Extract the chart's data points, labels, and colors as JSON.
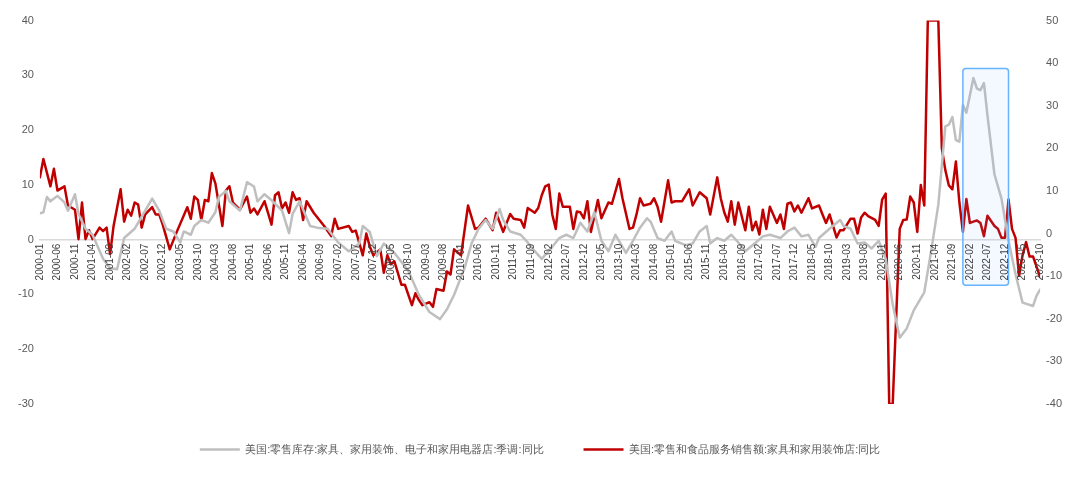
{
  "chart_data": {
    "type": "line",
    "legend": "bottom",
    "grid": false,
    "xlim": [
      "2000-01",
      "2023-10"
    ],
    "xticks": [
      "2000-01",
      "2000-06",
      "2000-11",
      "2001-04",
      "2001-09",
      "2002-02",
      "2002-07",
      "2002-12",
      "2003-05",
      "2003-10",
      "2004-03",
      "2004-08",
      "2005-01",
      "2005-06",
      "2005-11",
      "2006-04",
      "2006-09",
      "2007-02",
      "2007-07",
      "2007-12",
      "2008-05",
      "2008-10",
      "2009-03",
      "2009-08",
      "2010-01",
      "2010-06",
      "2010-11",
      "2011-04",
      "2011-09",
      "2012-02",
      "2012-07",
      "2012-12",
      "2013-05",
      "2013-10",
      "2014-03",
      "2014-08",
      "2015-01",
      "2015-06",
      "2015-11",
      "2016-04",
      "2016-09",
      "2017-02",
      "2017-07",
      "2017-12",
      "2018-05",
      "2018-10",
      "2019-03",
      "2019-08",
      "2020-01",
      "2020-06",
      "2020-11",
      "2021-04",
      "2021-09",
      "2022-02",
      "2022-07",
      "2022-12",
      "2023-05",
      "2023-10"
    ],
    "ylim": [
      -30,
      40
    ],
    "yticks": [
      -30,
      -20,
      -10,
      0,
      10,
      20,
      30,
      40
    ],
    "y2lim": [
      -40,
      50
    ],
    "y2ticks": [
      -40,
      -30,
      -20,
      -10,
      0,
      10,
      20,
      30,
      40,
      50
    ],
    "bands": [
      {
        "axis": "x",
        "from": "2021-12",
        "to": "2023-01",
        "color": "#66b3ff"
      }
    ],
    "series": [
      {
        "name": "美国:零售库存:家具、家用装饰、电子和家用电器店:季调:同比",
        "color": "#bfbfbf",
        "x": [
          "2000-01",
          "2000-02",
          "2000-03",
          "2000-04",
          "2000-06",
          "2000-08",
          "2000-09",
          "2000-11",
          "2000-12",
          "2001-02",
          "2001-04",
          "2001-07",
          "2001-09",
          "2001-11",
          "2002-01",
          "2002-04",
          "2002-06",
          "2002-09",
          "2002-11",
          "2003-01",
          "2003-03",
          "2003-05",
          "2003-06",
          "2003-08",
          "2003-09",
          "2003-11",
          "2004-01",
          "2004-03",
          "2004-04",
          "2004-06",
          "2004-07",
          "2004-10",
          "2004-12",
          "2005-02",
          "2005-03",
          "2005-05",
          "2005-07",
          "2005-10",
          "2005-12",
          "2006-01",
          "2006-03",
          "2006-06",
          "2006-08",
          "2006-11",
          "2007-02",
          "2007-05",
          "2007-08",
          "2007-09",
          "2007-11",
          "2008-01",
          "2008-03",
          "2008-06",
          "2008-10",
          "2009-01",
          "2009-04",
          "2009-07",
          "2009-09",
          "2009-11",
          "2010-02",
          "2010-04",
          "2010-06",
          "2010-08",
          "2010-10",
          "2010-12",
          "2011-01",
          "2011-03",
          "2011-06",
          "2011-08",
          "2011-10",
          "2011-12",
          "2012-03",
          "2012-05",
          "2012-07",
          "2012-09",
          "2012-11",
          "2013-01",
          "2013-03",
          "2013-05",
          "2013-07",
          "2013-09",
          "2013-12",
          "2014-02",
          "2014-04",
          "2014-06",
          "2014-07",
          "2014-09",
          "2014-11",
          "2015-01",
          "2015-02",
          "2015-05",
          "2015-07",
          "2015-09",
          "2015-11",
          "2015-12",
          "2016-02",
          "2016-04",
          "2016-06",
          "2016-08",
          "2016-10",
          "2017-01",
          "2017-03",
          "2017-05",
          "2017-08",
          "2017-10",
          "2017-12",
          "2018-02",
          "2018-04",
          "2018-06",
          "2018-07",
          "2018-10",
          "2019-01",
          "2019-02",
          "2019-04",
          "2019-06",
          "2019-08",
          "2019-10",
          "2019-12",
          "2020-02",
          "2020-04",
          "2020-06",
          "2020-08",
          "2020-10",
          "2020-11",
          "2021-01",
          "2021-03",
          "2021-05",
          "2021-07",
          "2021-08",
          "2021-09",
          "2021-10",
          "2021-11",
          "2021-12",
          "2022-01",
          "2022-03",
          "2022-04",
          "2022-05",
          "2022-06",
          "2022-07",
          "2022-09",
          "2022-11",
          "2023-01",
          "2023-03",
          "2023-05",
          "2023-08",
          "2023-09",
          "2023-10"
        ],
        "values": [
          4.8,
          5.0,
          7.8,
          7.0,
          8.0,
          6.8,
          5.3,
          8.3,
          4.7,
          2.0,
          0.9,
          -3.5,
          -5.2,
          -5.4,
          0.3,
          2.0,
          4.2,
          7.5,
          5.3,
          2.0,
          1.5,
          -0.5,
          1.5,
          0.9,
          2.5,
          3.6,
          3.1,
          5.0,
          7.8,
          8.9,
          7.0,
          5.3,
          10.5,
          9.7,
          7.0,
          8.3,
          7.2,
          5.3,
          1.2,
          4.7,
          7.0,
          2.5,
          2.2,
          2.0,
          -0.5,
          -2.1,
          -0.7,
          2.5,
          1.4,
          -3.0,
          -0.7,
          -2.4,
          -5.7,
          -10.1,
          -13.2,
          -14.5,
          -12.7,
          -10.1,
          -5.2,
          -0.7,
          2.0,
          3.6,
          2.0,
          5.6,
          3.6,
          1.5,
          0.9,
          -0.5,
          -2.1,
          -3.5,
          -1.3,
          0.3,
          0.9,
          0.3,
          3.1,
          1.5,
          5.0,
          -0.2,
          -2.1,
          0.9,
          -2.4,
          -0.2,
          2.2,
          3.9,
          3.3,
          0.3,
          -0.2,
          1.5,
          -0.2,
          -1.0,
          -0.7,
          1.5,
          2.5,
          -0.7,
          0.3,
          -0.2,
          0.9,
          -0.5,
          -2.1,
          -0.5,
          0.6,
          0.9,
          0.3,
          1.5,
          2.2,
          0.6,
          0.9,
          -1.3,
          0.3,
          2.0,
          3.6,
          2.5,
          2.0,
          -0.7,
          -0.5,
          -1.6,
          -0.2,
          -3.5,
          -11.8,
          -17.9,
          -16.2,
          -12.9,
          -11.8,
          -9.6,
          -1.9,
          6.4,
          20.7,
          21.0,
          22.4,
          18.2,
          17.9,
          24.6,
          23.2,
          29.5,
          27.6,
          27.3,
          28.6,
          22.7,
          11.9,
          7.5,
          -0.2,
          -6.3,
          -11.5,
          -12.1,
          -10.2,
          -9.1
        ]
      },
      {
        "name": "美国:零售和食品服务销售额:家具和家用装饰店:同比",
        "color": "#c00000",
        "axis": "y2",
        "x": [
          "2000-01",
          "2000-02",
          "2000-04",
          "2000-05",
          "2000-06",
          "2000-08",
          "2000-09",
          "2000-11",
          "2000-12",
          "2001-01",
          "2001-02",
          "2001-03",
          "2001-04",
          "2001-06",
          "2001-07",
          "2001-08",
          "2001-09",
          "2001-10",
          "2001-12",
          "2002-01",
          "2002-02",
          "2002-03",
          "2002-04",
          "2002-05",
          "2002-06",
          "2002-07",
          "2002-09",
          "2002-10",
          "2002-11",
          "2002-12",
          "2003-02",
          "2003-04",
          "2003-07",
          "2003-08",
          "2003-09",
          "2003-10",
          "2003-11",
          "2003-12",
          "2004-01",
          "2004-02",
          "2004-03",
          "2004-05",
          "2004-06",
          "2004-07",
          "2004-08",
          "2004-10",
          "2004-12",
          "2005-01",
          "2005-02",
          "2005-03",
          "2005-05",
          "2005-07",
          "2005-08",
          "2005-09",
          "2005-10",
          "2005-11",
          "2005-12",
          "2006-01",
          "2006-02",
          "2006-03",
          "2006-04",
          "2006-05",
          "2006-07",
          "2006-10",
          "2006-12",
          "2007-01",
          "2007-02",
          "2007-05",
          "2007-06",
          "2007-07",
          "2007-09",
          "2007-10",
          "2007-11",
          "2007-12",
          "2008-02",
          "2008-03",
          "2008-04",
          "2008-05",
          "2008-06",
          "2008-07",
          "2008-08",
          "2008-09",
          "2008-11",
          "2008-12",
          "2009-01",
          "2009-02",
          "2009-04",
          "2009-05",
          "2009-06",
          "2009-08",
          "2009-09",
          "2009-10",
          "2009-11",
          "2010-01",
          "2010-03",
          "2010-05",
          "2010-06",
          "2010-08",
          "2010-10",
          "2010-11",
          "2011-01",
          "2011-03",
          "2011-04",
          "2011-06",
          "2011-07",
          "2011-08",
          "2011-10",
          "2011-11",
          "2011-12",
          "2012-01",
          "2012-02",
          "2012-03",
          "2012-04",
          "2012-05",
          "2012-06",
          "2012-08",
          "2012-09",
          "2012-10",
          "2012-11",
          "2012-12",
          "2013-01",
          "2013-02",
          "2013-04",
          "2013-05",
          "2013-07",
          "2013-08",
          "2013-10",
          "2013-11",
          "2014-01",
          "2014-02",
          "2014-03",
          "2014-04",
          "2014-05",
          "2014-07",
          "2014-08",
          "2014-09",
          "2014-10",
          "2014-12",
          "2015-01",
          "2015-02",
          "2015-04",
          "2015-06",
          "2015-07",
          "2015-09",
          "2015-11",
          "2015-12",
          "2016-02",
          "2016-03",
          "2016-04",
          "2016-05",
          "2016-06",
          "2016-07",
          "2016-08",
          "2016-10",
          "2016-11",
          "2016-12",
          "2017-01",
          "2017-02",
          "2017-03",
          "2017-04",
          "2017-05",
          "2017-07",
          "2017-08",
          "2017-09",
          "2017-10",
          "2017-11",
          "2017-12",
          "2018-01",
          "2018-02",
          "2018-04",
          "2018-05",
          "2018-07",
          "2018-08",
          "2018-09",
          "2018-10",
          "2018-12",
          "2019-01",
          "2019-02",
          "2019-04",
          "2019-05",
          "2019-06",
          "2019-07",
          "2019-08",
          "2019-09",
          "2019-11",
          "2019-12",
          "2020-01",
          "2020-02",
          "2020-03",
          "2020-04",
          "2020-06",
          "2020-07",
          "2020-08",
          "2020-09",
          "2020-10",
          "2020-11",
          "2020-12",
          "2021-01",
          "2021-02",
          "2021-05",
          "2021-06",
          "2021-07",
          "2021-08",
          "2021-09",
          "2021-10",
          "2021-11",
          "2021-12",
          "2022-01",
          "2022-02",
          "2022-04",
          "2022-05",
          "2022-06",
          "2022-07",
          "2022-09",
          "2022-10",
          "2022-11",
          "2022-12",
          "2023-01",
          "2023-02",
          "2023-03",
          "2023-04",
          "2023-05",
          "2023-06",
          "2023-07",
          "2023-08",
          "2023-10"
        ],
        "values": [
          13.2,
          17.5,
          11.1,
          15.2,
          10.1,
          11.1,
          6.6,
          5.6,
          -1.3,
          7.3,
          -1.3,
          0.8,
          -1.3,
          1.4,
          0.6,
          1.4,
          -4.8,
          1.8,
          10.4,
          2.8,
          5.6,
          4.2,
          7.3,
          6.8,
          1.4,
          4.5,
          6.2,
          4.5,
          4.5,
          2.1,
          -3.7,
          0.4,
          6.2,
          3.5,
          8.7,
          7.9,
          3.2,
          7.9,
          7.6,
          14.2,
          11.8,
          1.8,
          10.1,
          11.1,
          7.3,
          5.6,
          8.7,
          4.9,
          5.9,
          4.5,
          7.6,
          2.1,
          9.0,
          9.7,
          5.9,
          7.3,
          4.9,
          9.7,
          7.9,
          8.3,
          3.2,
          7.6,
          4.9,
          1.8,
          -0.6,
          3.5,
          1.1,
          1.8,
          0.4,
          0.7,
          -5.1,
          0.0,
          -3.0,
          -5.1,
          -3.7,
          -9.2,
          -5.1,
          -7.2,
          -6.5,
          -9.2,
          -12.0,
          -12.0,
          -16.8,
          -14.0,
          -15.6,
          -16.8,
          -16.1,
          -17.2,
          -13.0,
          -13.4,
          -8.9,
          -9.6,
          -3.7,
          -5.1,
          6.6,
          1.1,
          1.4,
          3.5,
          0.8,
          4.9,
          0.4,
          4.6,
          3.5,
          3.2,
          1.4,
          6.0,
          4.9,
          6.0,
          9.0,
          11.1,
          11.5,
          4.5,
          1.1,
          9.4,
          6.3,
          6.3,
          1.1,
          5.2,
          5.0,
          3.6,
          7.6,
          0.4,
          7.9,
          3.6,
          7.3,
          7.0,
          12.8,
          8.3,
          1.1,
          1.4,
          4.5,
          8.3,
          6.6,
          7.0,
          8.3,
          6.3,
          2.8,
          12.5,
          7.3,
          7.6,
          7.6,
          10.4,
          6.6,
          9.7,
          8.3,
          4.5,
          13.2,
          8.3,
          5.0,
          2.8,
          7.6,
          2.1,
          7.3,
          0.8,
          6.3,
          0.8,
          2.8,
          -0.2,
          5.6,
          1.1,
          6.3,
          2.5,
          4.5,
          1.1,
          7.0,
          7.3,
          5.2,
          6.6,
          4.9,
          8.3,
          5.9,
          6.6,
          4.5,
          2.5,
          4.5,
          -0.9,
          0.8,
          0.8,
          3.5,
          3.5,
          0.0,
          3.8,
          4.9,
          4.1,
          3.2,
          1.8,
          8.0,
          9.4,
          -40,
          -40,
          1.1,
          3.2,
          3.3,
          8.7,
          7.3,
          0.4,
          11.4,
          6.6,
          50,
          50,
          20.0,
          14.9,
          11.3,
          10.4,
          16.9,
          7.3,
          0.4,
          8.1,
          2.5,
          3.1,
          2.5,
          -0.6,
          4.2,
          1.8,
          1.1,
          -1.0,
          -1.0,
          8.0,
          1.1,
          -1.0,
          -9.9,
          -5.1,
          -2.0,
          -5.4,
          -5.4,
          -10.2
        ]
      }
    ]
  }
}
